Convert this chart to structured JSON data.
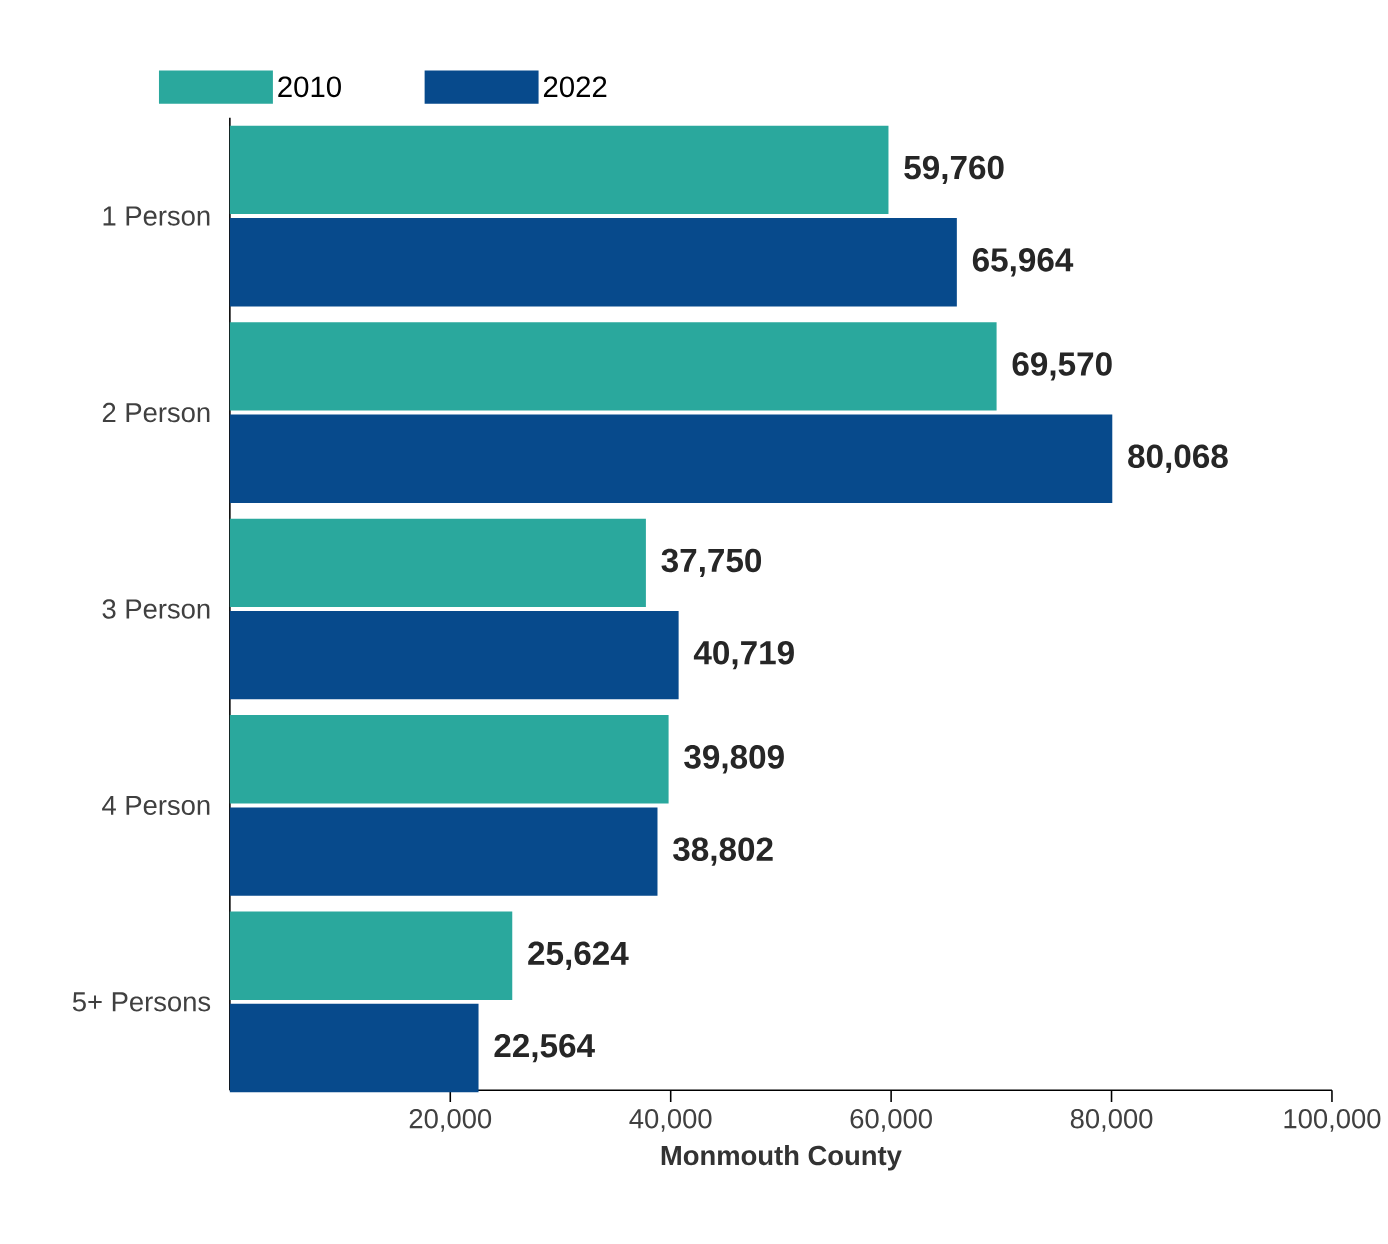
{
  "chart_data": {
    "type": "bar",
    "orientation": "horizontal",
    "xlabel": "Monmouth County",
    "categories": [
      "1  Person",
      "2 Person",
      "3 Person",
      "4 Person",
      "5+ Persons"
    ],
    "series": [
      {
        "name": "2010",
        "color": "#2aa89d",
        "values": [
          59760,
          69570,
          37750,
          39809,
          25624
        ],
        "value_labels": [
          "59,760",
          "69,570",
          "37,750",
          "39,809",
          "25,624"
        ]
      },
      {
        "name": "2022",
        "color": "#074a8c",
        "values": [
          65964,
          80068,
          40719,
          38802,
          22564
        ],
        "value_labels": [
          "65,964",
          "80,068",
          "40,719",
          "38,802",
          "22,564"
        ]
      }
    ],
    "xlim": [
      0,
      100000
    ],
    "xticks": [
      {
        "value": 20000,
        "label": "20,000"
      },
      {
        "value": 40000,
        "label": "40,000"
      },
      {
        "value": 60000,
        "label": "60,000"
      },
      {
        "value": 80000,
        "label": "80,000"
      },
      {
        "value": 100000,
        "label": "100,000"
      }
    ],
    "legend": "top left"
  }
}
